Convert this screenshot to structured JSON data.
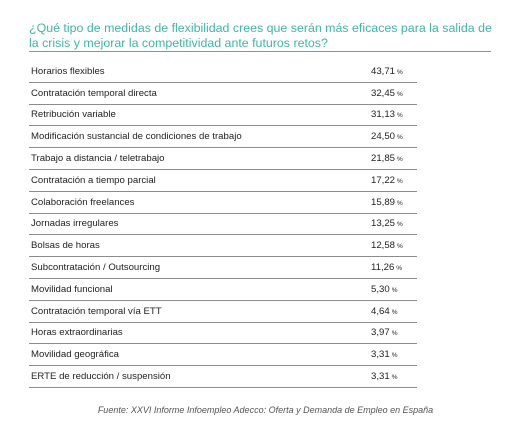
{
  "title": "¿Qué tipo de medidas de flexibilidad crees que serán más eficaces para la salida de la crisis y mejorar la competitividad ante futuros retos?",
  "source": "Fuente: XXVI Informe Infoempleo Adecco: Oferta y Demanda de Empleo en España",
  "chart_data": {
    "type": "table",
    "title": "¿Qué tipo de medidas de flexibilidad crees que serán más eficaces para la salida de la crisis y mejorar la competitividad ante futuros retos?",
    "unit": "%",
    "rows": [
      {
        "label": "Horarios flexibles",
        "value": "43,71"
      },
      {
        "label": "Contratación temporal directa",
        "value": "32,45"
      },
      {
        "label": "Retribución variable",
        "value": "31,13"
      },
      {
        "label": "Modificación sustancial de condiciones de trabajo",
        "value": "24,50"
      },
      {
        "label": "Trabajo a distancia / teletrabajo",
        "value": "21,85"
      },
      {
        "label": "Contratación a tiempo parcial",
        "value": "17,22"
      },
      {
        "label": "Colaboración freelances",
        "value": "15,89"
      },
      {
        "label": "Jornadas irregulares",
        "value": "13,25"
      },
      {
        "label": "Bolsas de horas",
        "value": "12,58"
      },
      {
        "label": "Subcontratación / Outsourcing",
        "value": "11,26"
      },
      {
        "label": "Movilidad funcional",
        "value": "5,30"
      },
      {
        "label": "Contratación temporal vía ETT",
        "value": "4,64"
      },
      {
        "label": "Horas extraordinarias",
        "value": "3,97"
      },
      {
        "label": "Movilidad geográfica",
        "value": "3,31"
      },
      {
        "label": "ERTE de reducción / suspensión",
        "value": "3,31"
      }
    ]
  },
  "colors": {
    "title": "#3fb6a8",
    "rule": "#8c8c8c",
    "text": "#222222"
  }
}
